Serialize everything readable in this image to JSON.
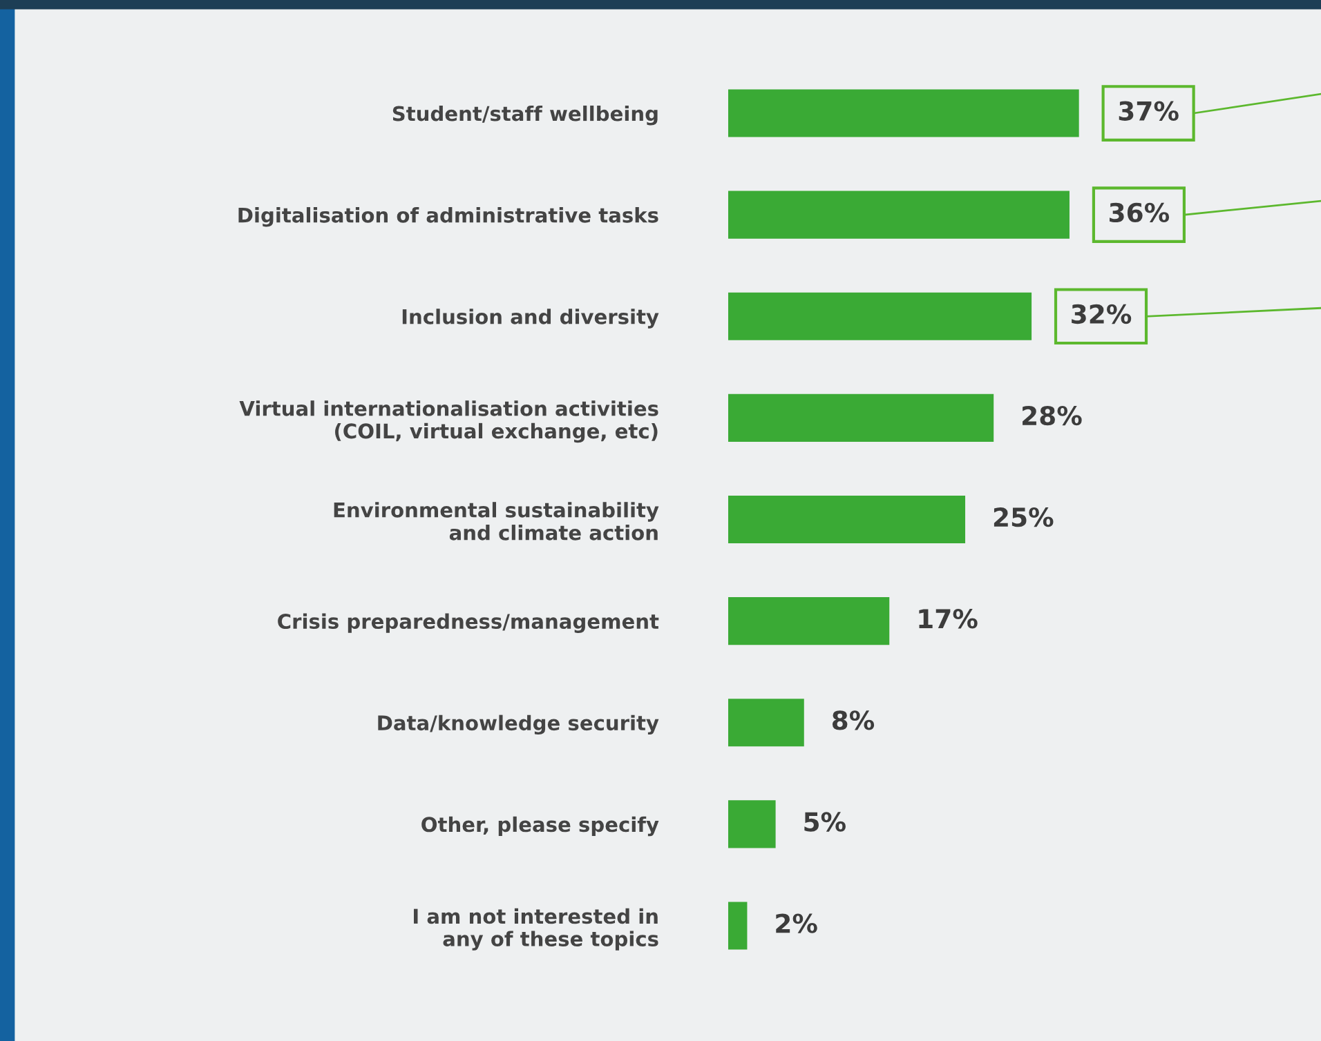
{
  "chart_data": {
    "type": "bar",
    "orientation": "horizontal",
    "categories": [
      "Student/staff wellbeing",
      "Digitalisation of administrative tasks",
      "Inclusion and diversity",
      "Virtual internationalisation activities\n(COIL, virtual exchange, etc)",
      "Environmental sustainability\nand climate action",
      "Crisis preparedness/management",
      "Data/knowledge security",
      "Other, please specify",
      "I am not interested in\nany of these topics"
    ],
    "values": [
      37,
      36,
      32,
      28,
      25,
      17,
      8,
      5,
      2
    ],
    "value_labels": [
      "37%",
      "36%",
      "32%",
      "28%",
      "25%",
      "17%",
      "8%",
      "5%",
      "2%"
    ],
    "color": "#3aaa35",
    "grid": false,
    "legend": false
  }
}
